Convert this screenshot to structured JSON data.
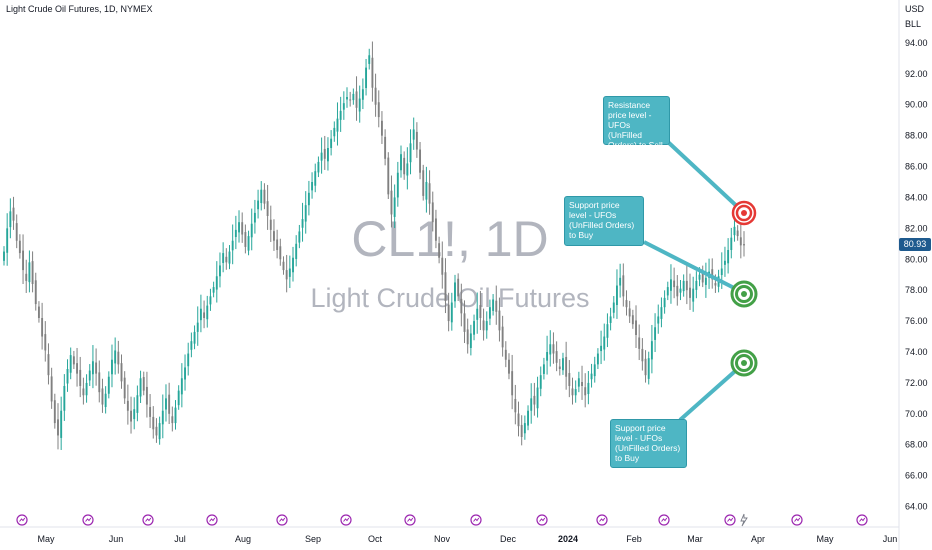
{
  "header": {
    "symbol_title": "Light Crude Oil Futures, 1D, NYMEX"
  },
  "watermark": {
    "symbol": "CL1!, 1D",
    "name": "Light Crude Oil Futures"
  },
  "price_axis": {
    "currency": "USD",
    "unit": "BLL",
    "last_price": "80.93",
    "last_price_color": "#1e5a8e"
  },
  "annotations": {
    "resistance": "Resistance price level - UFOs (UnFilled Orders) to Sell",
    "support_upper": "Support price level - UFOs (UnFilled Orders) to Buy",
    "support_lower": "Support price level - UFOs (UnFilled Orders) to Buy"
  },
  "colors": {
    "up": "#26a69a",
    "down": "#808080",
    "callout": "#4eb6c4",
    "target_red": "#e53935",
    "target_green": "#43a047",
    "event_icon": "#9c27b0"
  },
  "chart_data": {
    "type": "candlestick",
    "title": "Light Crude Oil Futures, 1D, NYMEX",
    "ylim": [
      63,
      96
    ],
    "y_ticks": [
      "64.00",
      "66.00",
      "68.00",
      "70.00",
      "72.00",
      "74.00",
      "76.00",
      "78.00",
      "80.00",
      "82.00",
      "84.00",
      "86.00",
      "88.00",
      "90.00",
      "92.00",
      "94.00"
    ],
    "x_ticks": [
      "May",
      "Jun",
      "Jul",
      "Aug",
      "Sep",
      "Oct",
      "Nov",
      "Dec",
      "2024",
      "Feb",
      "Mar",
      "Apr",
      "May",
      "Jun"
    ],
    "levels": {
      "resistance": 83.2,
      "support_upper": 78.0,
      "support_lower": 73.3
    },
    "closes": [
      80.5,
      82.0,
      83.1,
      82.5,
      81.2,
      80.4,
      79.3,
      78.6,
      79.8,
      78.4,
      77.1,
      76.2,
      75.0,
      74.1,
      72.5,
      70.8,
      69.4,
      68.6,
      70.2,
      71.8,
      72.9,
      73.8,
      73.2,
      72.6,
      71.8,
      71.2,
      72.0,
      72.8,
      73.4,
      72.6,
      71.4,
      70.6,
      71.3,
      72.4,
      73.5,
      74.1,
      73.2,
      72.1,
      71.0,
      70.2,
      69.5,
      70.3,
      71.2,
      72.3,
      71.5,
      70.6,
      69.8,
      69.0,
      68.6,
      69.4,
      70.2,
      71.0,
      70.0,
      69.4,
      70.4,
      71.5,
      72.3,
      73.0,
      73.9,
      74.7,
      75.3,
      75.9,
      76.8,
      76.2,
      77.0,
      77.6,
      78.2,
      78.9,
      79.6,
      80.4,
      79.8,
      80.5,
      81.2,
      81.9,
      82.4,
      81.6,
      80.8,
      81.5,
      82.3,
      83.0,
      83.8,
      84.5,
      83.6,
      82.8,
      81.9,
      81.2,
      80.6,
      80.0,
      79.3,
      78.7,
      79.4,
      80.1,
      81.0,
      81.8,
      82.6,
      83.5,
      84.3,
      85.0,
      85.7,
      86.3,
      86.9,
      86.5,
      87.2,
      87.8,
      88.5,
      89.1,
      89.6,
      90.1,
      90.5,
      90.3,
      90.7,
      89.8,
      90.4,
      91.0,
      92.4,
      93.2,
      91.1,
      90.0,
      89.2,
      88.0,
      86.5,
      84.2,
      82.9,
      84.0,
      85.6,
      86.8,
      85.5,
      86.2,
      87.5,
      88.4,
      87.1,
      85.6,
      84.1,
      85.0,
      83.6,
      82.4,
      81.2,
      80.1,
      79.0,
      77.3,
      76.0,
      77.2,
      78.5,
      77.6,
      76.5,
      75.3,
      74.5,
      75.2,
      76.0,
      76.8,
      76.2,
      75.4,
      76.0,
      76.9,
      77.4,
      76.6,
      75.4,
      74.3,
      73.5,
      72.6,
      71.2,
      70.1,
      69.2,
      68.5,
      69.4,
      70.2,
      71.0,
      70.6,
      71.7,
      72.5,
      73.2,
      74.0,
      74.5,
      73.9,
      73.3,
      72.9,
      73.6,
      72.4,
      71.8,
      71.2,
      71.6,
      72.3,
      71.8,
      71.2,
      72.0,
      72.6,
      73.2,
      73.9,
      74.4,
      75.0,
      75.8,
      76.3,
      77.2,
      78.3,
      78.8,
      77.6,
      76.9,
      76.3,
      75.8,
      75.1,
      74.2,
      73.4,
      72.5,
      73.6,
      74.7,
      75.6,
      76.3,
      76.9,
      77.5,
      78.2,
      78.7,
      78.2,
      77.6,
      78.1,
      78.6,
      78.0,
      77.5,
      78.1,
      78.6,
      79.0,
      78.5,
      78.8,
      79.2,
      78.7,
      78.3,
      78.9,
      79.4,
      79.9,
      80.6,
      81.4,
      82.1,
      81.5,
      80.9,
      80.9
    ]
  }
}
